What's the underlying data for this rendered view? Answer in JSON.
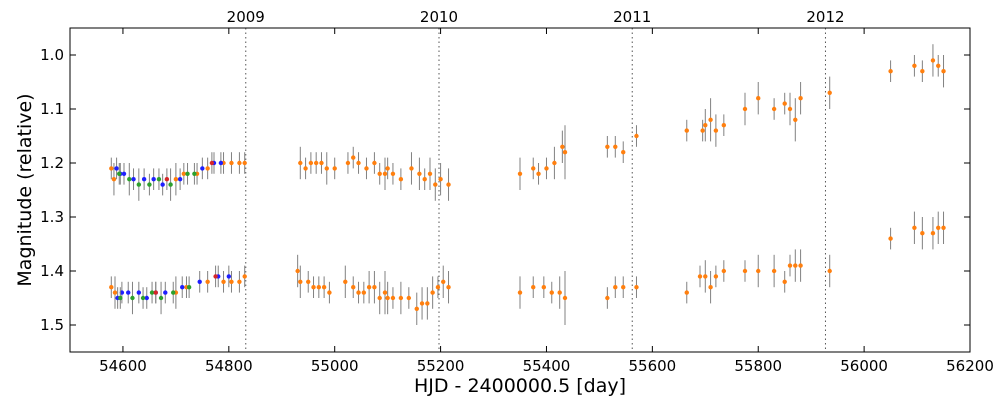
{
  "chart_data": {
    "type": "scatter",
    "xlabel": "HJD - 2400000.5 [day]",
    "ylabel": "Magnitude (relative)",
    "xlim": [
      54500,
      56200
    ],
    "ylim": [
      1.55,
      0.95
    ],
    "y_inverted": true,
    "x_ticks": [
      54600,
      54800,
      55000,
      55200,
      55400,
      55600,
      55800,
      56000,
      56200
    ],
    "y_ticks": [
      1.0,
      1.1,
      1.2,
      1.3,
      1.4,
      1.5
    ],
    "y_tick_labels": [
      "1.0",
      "1.1",
      "1.2",
      "1.3",
      "1.4",
      "1.5"
    ],
    "year_markers": [
      {
        "label": "2009",
        "x": 54832
      },
      {
        "label": "2010",
        "x": 55197
      },
      {
        "label": "2011",
        "x": 55562
      },
      {
        "label": "2012",
        "x": 55927
      }
    ],
    "grid": false,
    "colors": {
      "orange": "#ff7f0e",
      "blue": "#1f1fff",
      "green": "#2ca02c",
      "red": "#d62728",
      "errorbar": "#808080"
    },
    "series": [
      {
        "color": "orange",
        "points": [
          {
            "x": 54578,
            "y": 1.21,
            "e": 0.02
          },
          {
            "x": 54583,
            "y": 1.23,
            "e": 0.03
          },
          {
            "x": 54700,
            "y": 1.23,
            "e": 0.03
          },
          {
            "x": 54715,
            "y": 1.22,
            "e": 0.02
          },
          {
            "x": 54740,
            "y": 1.22,
            "e": 0.02
          },
          {
            "x": 54760,
            "y": 1.21,
            "e": 0.02
          },
          {
            "x": 54790,
            "y": 1.2,
            "e": 0.02
          },
          {
            "x": 54805,
            "y": 1.2,
            "e": 0.02
          },
          {
            "x": 54820,
            "y": 1.2,
            "e": 0.02
          },
          {
            "x": 54830,
            "y": 1.2,
            "e": 0.02
          },
          {
            "x": 54935,
            "y": 1.2,
            "e": 0.03
          },
          {
            "x": 54945,
            "y": 1.21,
            "e": 0.02
          },
          {
            "x": 54955,
            "y": 1.2,
            "e": 0.02
          },
          {
            "x": 54965,
            "y": 1.2,
            "e": 0.02
          },
          {
            "x": 54975,
            "y": 1.2,
            "e": 0.02
          },
          {
            "x": 54985,
            "y": 1.21,
            "e": 0.03
          },
          {
            "x": 55000,
            "y": 1.21,
            "e": 0.02
          },
          {
            "x": 55025,
            "y": 1.2,
            "e": 0.02
          },
          {
            "x": 55035,
            "y": 1.19,
            "e": 0.02
          },
          {
            "x": 55045,
            "y": 1.2,
            "e": 0.02
          },
          {
            "x": 55060,
            "y": 1.21,
            "e": 0.02
          },
          {
            "x": 55075,
            "y": 1.2,
            "e": 0.02
          },
          {
            "x": 55085,
            "y": 1.22,
            "e": 0.02
          },
          {
            "x": 55095,
            "y": 1.22,
            "e": 0.03
          },
          {
            "x": 55100,
            "y": 1.21,
            "e": 0.02
          },
          {
            "x": 55110,
            "y": 1.22,
            "e": 0.02
          },
          {
            "x": 55125,
            "y": 1.23,
            "e": 0.02
          },
          {
            "x": 55145,
            "y": 1.21,
            "e": 0.03
          },
          {
            "x": 55160,
            "y": 1.22,
            "e": 0.03
          },
          {
            "x": 55170,
            "y": 1.23,
            "e": 0.02
          },
          {
            "x": 55180,
            "y": 1.22,
            "e": 0.03
          },
          {
            "x": 55190,
            "y": 1.24,
            "e": 0.03
          },
          {
            "x": 55200,
            "y": 1.23,
            "e": 0.03
          },
          {
            "x": 55215,
            "y": 1.24,
            "e": 0.03
          },
          {
            "x": 55350,
            "y": 1.22,
            "e": 0.03
          },
          {
            "x": 55375,
            "y": 1.21,
            "e": 0.02
          },
          {
            "x": 55385,
            "y": 1.22,
            "e": 0.02
          },
          {
            "x": 55400,
            "y": 1.21,
            "e": 0.02
          },
          {
            "x": 55415,
            "y": 1.2,
            "e": 0.03
          },
          {
            "x": 55430,
            "y": 1.17,
            "e": 0.03
          },
          {
            "x": 55435,
            "y": 1.18,
            "e": 0.05
          },
          {
            "x": 55515,
            "y": 1.17,
            "e": 0.02
          },
          {
            "x": 55530,
            "y": 1.17,
            "e": 0.02
          },
          {
            "x": 55545,
            "y": 1.18,
            "e": 0.02
          },
          {
            "x": 55570,
            "y": 1.15,
            "e": 0.02
          },
          {
            "x": 55665,
            "y": 1.14,
            "e": 0.02
          },
          {
            "x": 55695,
            "y": 1.14,
            "e": 0.02
          },
          {
            "x": 55700,
            "y": 1.13,
            "e": 0.03
          },
          {
            "x": 55710,
            "y": 1.12,
            "e": 0.04
          },
          {
            "x": 55720,
            "y": 1.14,
            "e": 0.03
          },
          {
            "x": 55735,
            "y": 1.13,
            "e": 0.02
          },
          {
            "x": 55775,
            "y": 1.1,
            "e": 0.03
          },
          {
            "x": 55800,
            "y": 1.08,
            "e": 0.03
          },
          {
            "x": 55830,
            "y": 1.1,
            "e": 0.02
          },
          {
            "x": 55850,
            "y": 1.09,
            "e": 0.02
          },
          {
            "x": 55860,
            "y": 1.1,
            "e": 0.03
          },
          {
            "x": 55870,
            "y": 1.12,
            "e": 0.04
          },
          {
            "x": 55880,
            "y": 1.08,
            "e": 0.03
          },
          {
            "x": 55935,
            "y": 1.07,
            "e": 0.03
          },
          {
            "x": 56050,
            "y": 1.03,
            "e": 0.02
          },
          {
            "x": 56095,
            "y": 1.02,
            "e": 0.02
          },
          {
            "x": 56110,
            "y": 1.03,
            "e": 0.02
          },
          {
            "x": 56130,
            "y": 1.01,
            "e": 0.03
          },
          {
            "x": 56140,
            "y": 1.02,
            "e": 0.02
          },
          {
            "x": 56150,
            "y": 1.03,
            "e": 0.03
          },
          {
            "x": 54578,
            "y": 1.43,
            "e": 0.02
          },
          {
            "x": 54585,
            "y": 1.44,
            "e": 0.03
          },
          {
            "x": 54700,
            "y": 1.44,
            "e": 0.03
          },
          {
            "x": 54720,
            "y": 1.43,
            "e": 0.02
          },
          {
            "x": 54760,
            "y": 1.42,
            "e": 0.02
          },
          {
            "x": 54790,
            "y": 1.42,
            "e": 0.02
          },
          {
            "x": 54805,
            "y": 1.42,
            "e": 0.02
          },
          {
            "x": 54820,
            "y": 1.42,
            "e": 0.02
          },
          {
            "x": 54830,
            "y": 1.41,
            "e": 0.02
          },
          {
            "x": 54930,
            "y": 1.4,
            "e": 0.03
          },
          {
            "x": 54935,
            "y": 1.42,
            "e": 0.03
          },
          {
            "x": 54950,
            "y": 1.42,
            "e": 0.02
          },
          {
            "x": 54960,
            "y": 1.43,
            "e": 0.02
          },
          {
            "x": 54970,
            "y": 1.43,
            "e": 0.02
          },
          {
            "x": 54980,
            "y": 1.43,
            "e": 0.02
          },
          {
            "x": 54990,
            "y": 1.44,
            "e": 0.02
          },
          {
            "x": 55020,
            "y": 1.42,
            "e": 0.03
          },
          {
            "x": 55035,
            "y": 1.43,
            "e": 0.02
          },
          {
            "x": 55045,
            "y": 1.44,
            "e": 0.02
          },
          {
            "x": 55055,
            "y": 1.44,
            "e": 0.02
          },
          {
            "x": 55065,
            "y": 1.43,
            "e": 0.03
          },
          {
            "x": 55075,
            "y": 1.43,
            "e": 0.03
          },
          {
            "x": 55085,
            "y": 1.45,
            "e": 0.03
          },
          {
            "x": 55095,
            "y": 1.44,
            "e": 0.04
          },
          {
            "x": 55100,
            "y": 1.45,
            "e": 0.03
          },
          {
            "x": 55110,
            "y": 1.45,
            "e": 0.02
          },
          {
            "x": 55125,
            "y": 1.45,
            "e": 0.03
          },
          {
            "x": 55140,
            "y": 1.45,
            "e": 0.02
          },
          {
            "x": 55155,
            "y": 1.47,
            "e": 0.03
          },
          {
            "x": 55165,
            "y": 1.46,
            "e": 0.03
          },
          {
            "x": 55175,
            "y": 1.46,
            "e": 0.03
          },
          {
            "x": 55185,
            "y": 1.44,
            "e": 0.03
          },
          {
            "x": 55195,
            "y": 1.43,
            "e": 0.02
          },
          {
            "x": 55205,
            "y": 1.42,
            "e": 0.03
          },
          {
            "x": 55215,
            "y": 1.43,
            "e": 0.03
          },
          {
            "x": 55350,
            "y": 1.44,
            "e": 0.03
          },
          {
            "x": 55375,
            "y": 1.43,
            "e": 0.02
          },
          {
            "x": 55395,
            "y": 1.43,
            "e": 0.02
          },
          {
            "x": 55410,
            "y": 1.44,
            "e": 0.02
          },
          {
            "x": 55425,
            "y": 1.44,
            "e": 0.03
          },
          {
            "x": 55435,
            "y": 1.45,
            "e": 0.05
          },
          {
            "x": 55515,
            "y": 1.45,
            "e": 0.02
          },
          {
            "x": 55530,
            "y": 1.43,
            "e": 0.02
          },
          {
            "x": 55545,
            "y": 1.43,
            "e": 0.02
          },
          {
            "x": 55570,
            "y": 1.43,
            "e": 0.02
          },
          {
            "x": 55665,
            "y": 1.44,
            "e": 0.02
          },
          {
            "x": 55690,
            "y": 1.41,
            "e": 0.02
          },
          {
            "x": 55700,
            "y": 1.41,
            "e": 0.03
          },
          {
            "x": 55710,
            "y": 1.43,
            "e": 0.03
          },
          {
            "x": 55720,
            "y": 1.41,
            "e": 0.02
          },
          {
            "x": 55735,
            "y": 1.4,
            "e": 0.02
          },
          {
            "x": 55775,
            "y": 1.4,
            "e": 0.02
          },
          {
            "x": 55800,
            "y": 1.4,
            "e": 0.03
          },
          {
            "x": 55830,
            "y": 1.4,
            "e": 0.03
          },
          {
            "x": 55850,
            "y": 1.42,
            "e": 0.02
          },
          {
            "x": 55860,
            "y": 1.39,
            "e": 0.02
          },
          {
            "x": 55870,
            "y": 1.39,
            "e": 0.03
          },
          {
            "x": 55880,
            "y": 1.39,
            "e": 0.03
          },
          {
            "x": 55935,
            "y": 1.4,
            "e": 0.03
          },
          {
            "x": 56050,
            "y": 1.34,
            "e": 0.02
          },
          {
            "x": 56095,
            "y": 1.32,
            "e": 0.03
          },
          {
            "x": 56110,
            "y": 1.33,
            "e": 0.03
          },
          {
            "x": 56130,
            "y": 1.33,
            "e": 0.03
          },
          {
            "x": 56140,
            "y": 1.32,
            "e": 0.03
          },
          {
            "x": 56150,
            "y": 1.32,
            "e": 0.03
          }
        ]
      },
      {
        "color": "blue",
        "points": [
          {
            "x": 54588,
            "y": 1.21,
            "e": 0.02
          },
          {
            "x": 54595,
            "y": 1.22,
            "e": 0.02
          },
          {
            "x": 54602,
            "y": 1.22,
            "e": 0.02
          },
          {
            "x": 54620,
            "y": 1.23,
            "e": 0.02
          },
          {
            "x": 54640,
            "y": 1.23,
            "e": 0.02
          },
          {
            "x": 54658,
            "y": 1.23,
            "e": 0.02
          },
          {
            "x": 54675,
            "y": 1.24,
            "e": 0.02
          },
          {
            "x": 54708,
            "y": 1.23,
            "e": 0.02
          },
          {
            "x": 54750,
            "y": 1.21,
            "e": 0.02
          },
          {
            "x": 54772,
            "y": 1.2,
            "e": 0.02
          },
          {
            "x": 54785,
            "y": 1.2,
            "e": 0.02
          },
          {
            "x": 54590,
            "y": 1.45,
            "e": 0.02
          },
          {
            "x": 54598,
            "y": 1.44,
            "e": 0.02
          },
          {
            "x": 54610,
            "y": 1.44,
            "e": 0.02
          },
          {
            "x": 54630,
            "y": 1.44,
            "e": 0.02
          },
          {
            "x": 54645,
            "y": 1.45,
            "e": 0.02
          },
          {
            "x": 54662,
            "y": 1.44,
            "e": 0.02
          },
          {
            "x": 54680,
            "y": 1.44,
            "e": 0.02
          },
          {
            "x": 54712,
            "y": 1.43,
            "e": 0.02
          },
          {
            "x": 54745,
            "y": 1.42,
            "e": 0.02
          },
          {
            "x": 54780,
            "y": 1.41,
            "e": 0.02
          },
          {
            "x": 54800,
            "y": 1.41,
            "e": 0.02
          }
        ]
      },
      {
        "color": "green",
        "points": [
          {
            "x": 54593,
            "y": 1.22,
            "e": 0.02
          },
          {
            "x": 54612,
            "y": 1.23,
            "e": 0.03
          },
          {
            "x": 54630,
            "y": 1.24,
            "e": 0.03
          },
          {
            "x": 54650,
            "y": 1.24,
            "e": 0.02
          },
          {
            "x": 54668,
            "y": 1.23,
            "e": 0.02
          },
          {
            "x": 54690,
            "y": 1.24,
            "e": 0.03
          },
          {
            "x": 54722,
            "y": 1.22,
            "e": 0.02
          },
          {
            "x": 54735,
            "y": 1.22,
            "e": 0.02
          },
          {
            "x": 54595,
            "y": 1.45,
            "e": 0.02
          },
          {
            "x": 54618,
            "y": 1.45,
            "e": 0.03
          },
          {
            "x": 54638,
            "y": 1.45,
            "e": 0.02
          },
          {
            "x": 54655,
            "y": 1.44,
            "e": 0.02
          },
          {
            "x": 54672,
            "y": 1.45,
            "e": 0.03
          },
          {
            "x": 54695,
            "y": 1.44,
            "e": 0.02
          },
          {
            "x": 54725,
            "y": 1.43,
            "e": 0.02
          }
        ]
      },
      {
        "color": "red",
        "points": [
          {
            "x": 54683,
            "y": 1.23,
            "e": 0.02
          },
          {
            "x": 54768,
            "y": 1.2,
            "e": 0.02
          },
          {
            "x": 54662,
            "y": 1.44,
            "e": 0.02
          },
          {
            "x": 54775,
            "y": 1.41,
            "e": 0.02
          }
        ]
      }
    ]
  }
}
